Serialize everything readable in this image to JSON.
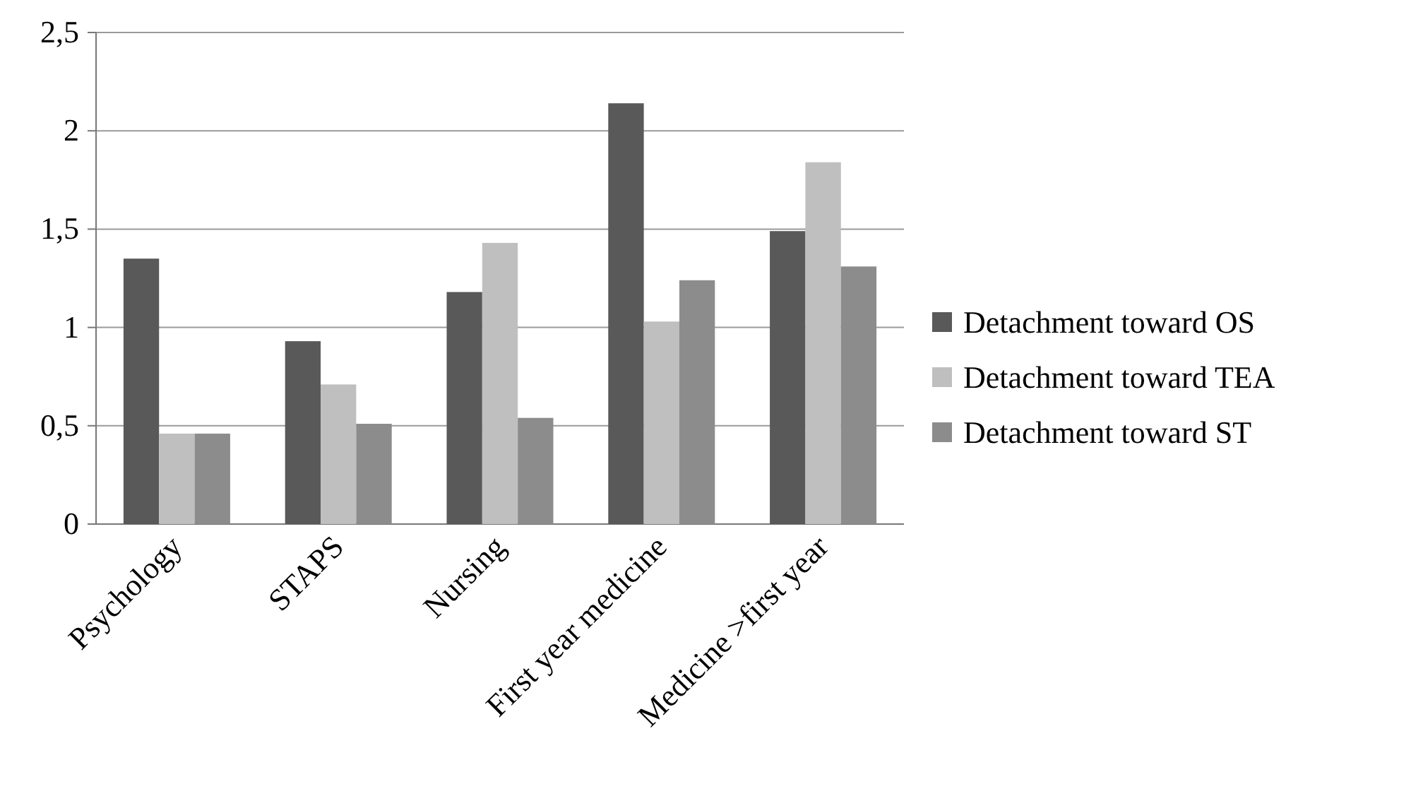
{
  "chart_data": {
    "type": "bar",
    "categories": [
      "Psychology",
      "STAPS",
      "Nursing",
      "First year  medicine",
      "Medicine >first year"
    ],
    "series": [
      {
        "name": "Detachment toward OS",
        "color": "#595959",
        "values": [
          1.35,
          0.93,
          1.18,
          2.14,
          1.49
        ]
      },
      {
        "name": "Detachment toward TEA",
        "color": "#bfbfbf",
        "values": [
          0.46,
          0.71,
          1.43,
          1.03,
          1.84
        ]
      },
      {
        "name": "Detachment toward ST",
        "color": "#8c8c8c",
        "values": [
          0.46,
          0.51,
          0.54,
          1.24,
          1.31
        ]
      }
    ],
    "ylim": [
      0,
      2.5
    ],
    "yticks": [
      0,
      {
        "value": 0.5,
        "label": "0,5"
      },
      1,
      {
        "value": 1.5,
        "label": "1,5"
      },
      2,
      {
        "value": 2.5,
        "label": "2,5"
      }
    ],
    "grid": "y",
    "legend": "right"
  }
}
